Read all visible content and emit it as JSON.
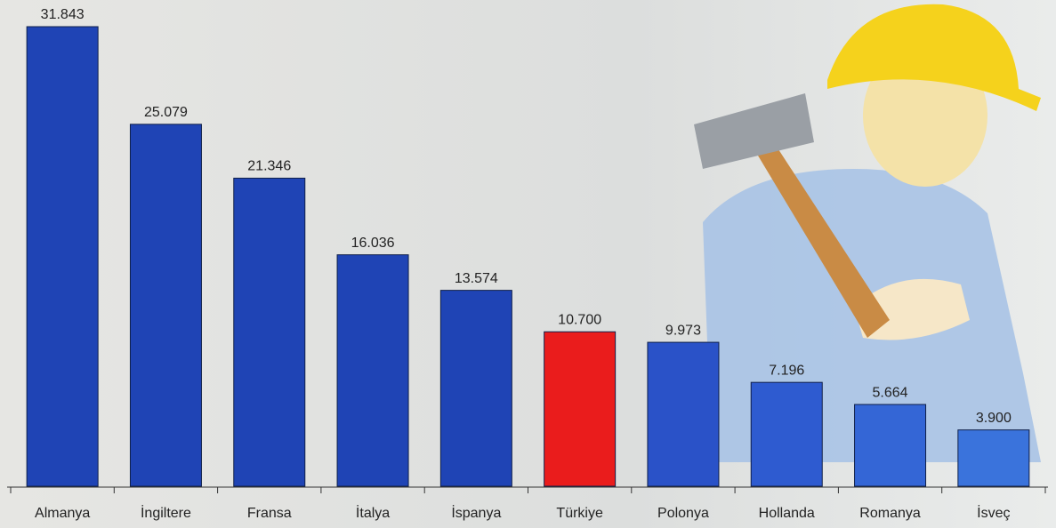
{
  "chart_data": {
    "type": "bar",
    "categories": [
      "Almanya",
      "İngiltere",
      "Fransa",
      "İtalya",
      "İspanya",
      "Türkiye",
      "Polonya",
      "Hollanda",
      "Romanya",
      "İsveç"
    ],
    "values": [
      31843,
      25079,
      21346,
      16036,
      13574,
      10700,
      9973,
      7196,
      5664,
      3900
    ],
    "value_labels": [
      "31.843",
      "25.079",
      "21.346",
      "16.036",
      "13.574",
      "10.700",
      "9.973",
      "7.196",
      "5.664",
      "3.900"
    ],
    "colors": [
      "#1f44b5",
      "#1f44b5",
      "#1f44b5",
      "#1f44b5",
      "#1f44b5",
      "#ea1c1c",
      "#2a52c8",
      "#2e5bd0",
      "#3466d6",
      "#3a73dc"
    ]
  }
}
